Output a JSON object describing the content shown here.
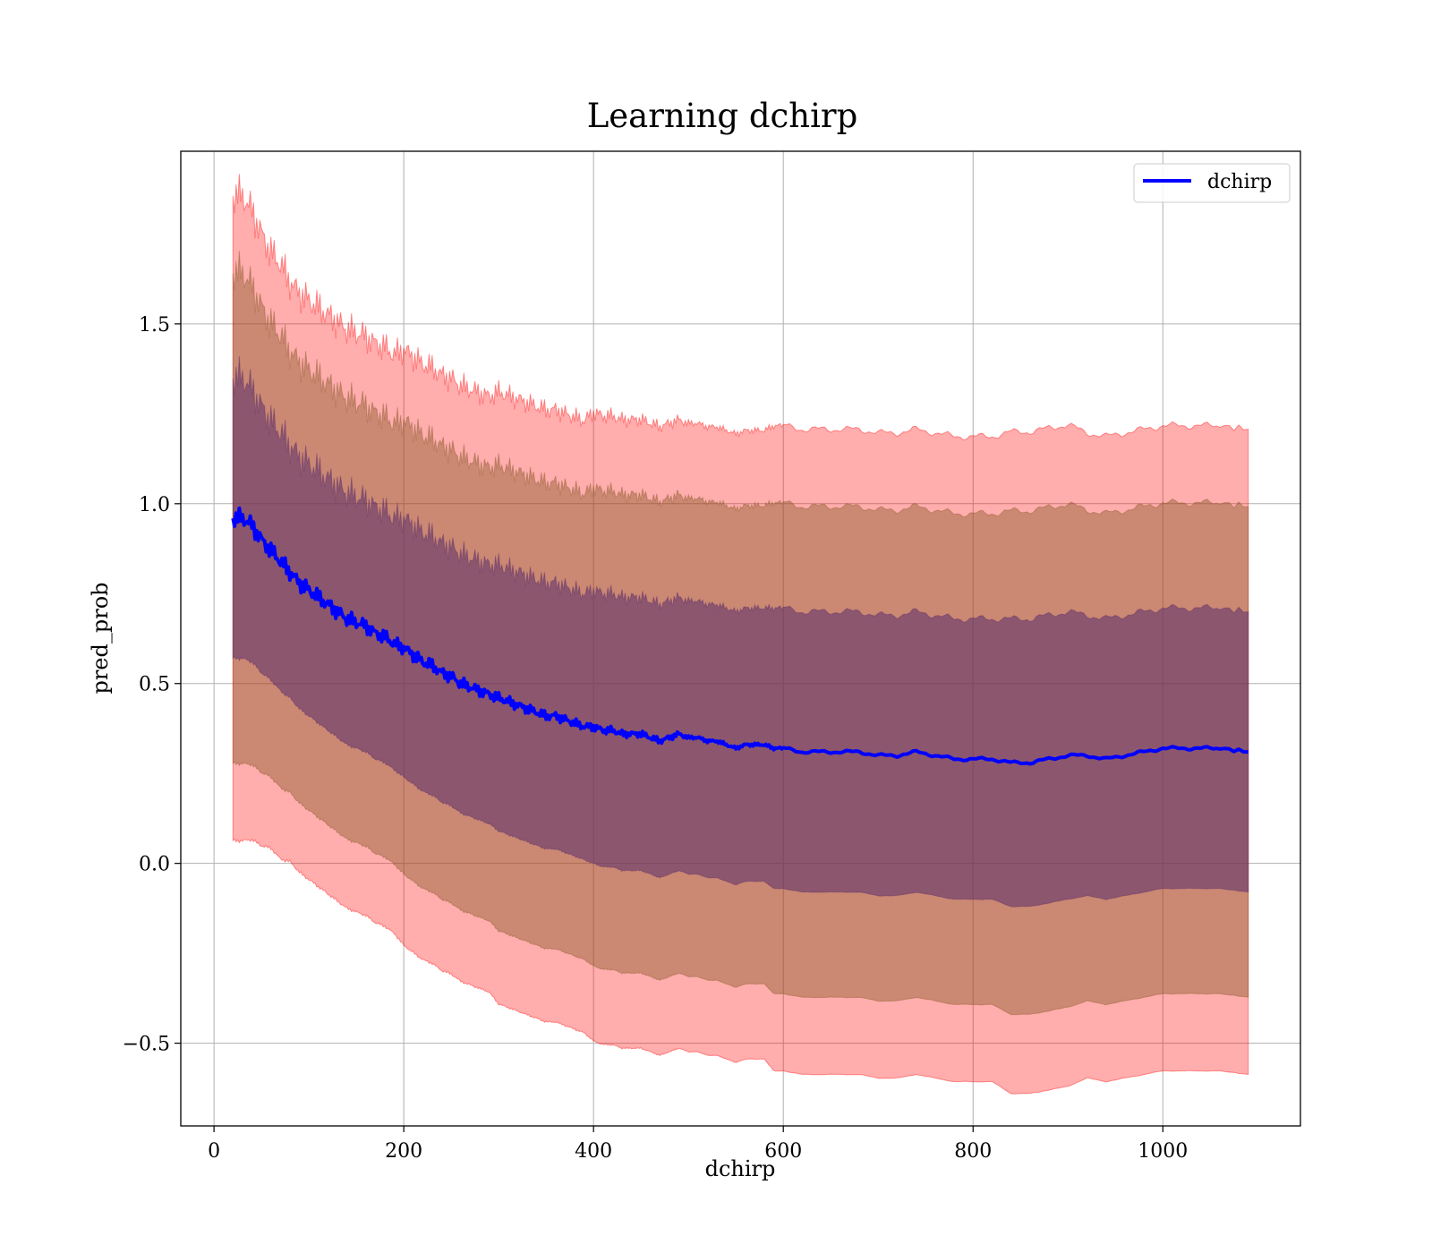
{
  "chart_data": {
    "type": "line",
    "title": "Learning dchirp",
    "xlabel": "dchirp",
    "ylabel": "pred_prob",
    "xlim": [
      -35,
      1145
    ],
    "ylim": [
      -0.73,
      1.98
    ],
    "xticks": [
      0,
      200,
      400,
      600,
      800,
      1000
    ],
    "yticks": [
      -0.5,
      0.0,
      0.5,
      1.0,
      1.5
    ],
    "xtick_labels": [
      "0",
      "200",
      "400",
      "600",
      "800",
      "1000"
    ],
    "ytick_labels": [
      "−0.5",
      "0.0",
      "0.5",
      "1.0",
      "1.5"
    ],
    "grid": true,
    "legend_position": "top-right",
    "legend": [
      "dchirp"
    ],
    "colors": {
      "line": "#0000ff",
      "band_outer": "#ff0000",
      "band_middle": "#8b5a2b",
      "band_inner": "#5a2d6b",
      "grid": "#b0b0b0"
    },
    "series": [
      {
        "name": "dchirp",
        "x": [
          20,
          30,
          40,
          50,
          60,
          70,
          80,
          90,
          100,
          110,
          120,
          130,
          140,
          150,
          160,
          170,
          180,
          190,
          200,
          210,
          220,
          230,
          240,
          250,
          260,
          270,
          280,
          290,
          300,
          310,
          320,
          330,
          340,
          350,
          360,
          370,
          380,
          390,
          400,
          410,
          420,
          430,
          440,
          450,
          460,
          470,
          480,
          490,
          500,
          510,
          520,
          530,
          540,
          550,
          560,
          570,
          580,
          590,
          600,
          620,
          640,
          660,
          680,
          700,
          720,
          740,
          760,
          780,
          800,
          820,
          840,
          860,
          880,
          900,
          920,
          940,
          960,
          980,
          1000,
          1020,
          1040,
          1060,
          1090
        ],
        "y": [
          0.96,
          0.96,
          0.94,
          0.9,
          0.87,
          0.84,
          0.81,
          0.78,
          0.76,
          0.74,
          0.72,
          0.7,
          0.68,
          0.67,
          0.66,
          0.64,
          0.63,
          0.61,
          0.6,
          0.58,
          0.56,
          0.55,
          0.53,
          0.52,
          0.5,
          0.49,
          0.48,
          0.47,
          0.46,
          0.45,
          0.44,
          0.43,
          0.42,
          0.41,
          0.41,
          0.4,
          0.39,
          0.38,
          0.38,
          0.37,
          0.37,
          0.36,
          0.36,
          0.36,
          0.35,
          0.34,
          0.35,
          0.36,
          0.35,
          0.35,
          0.34,
          0.34,
          0.33,
          0.32,
          0.33,
          0.33,
          0.33,
          0.32,
          0.32,
          0.31,
          0.31,
          0.31,
          0.31,
          0.3,
          0.3,
          0.31,
          0.3,
          0.29,
          0.29,
          0.29,
          0.28,
          0.28,
          0.29,
          0.3,
          0.3,
          0.29,
          0.3,
          0.31,
          0.32,
          0.32,
          0.32,
          0.32,
          0.31
        ],
        "std": [
          0.39,
          0.39,
          0.38,
          0.37,
          0.36,
          0.36,
          0.35,
          0.35,
          0.35,
          0.35,
          0.35,
          0.35,
          0.35,
          0.35,
          0.35,
          0.35,
          0.35,
          0.35,
          0.36,
          0.36,
          0.36,
          0.36,
          0.36,
          0.36,
          0.36,
          0.36,
          0.36,
          0.36,
          0.37,
          0.37,
          0.37,
          0.37,
          0.37,
          0.37,
          0.37,
          0.37,
          0.37,
          0.37,
          0.38,
          0.38,
          0.38,
          0.38,
          0.38,
          0.38,
          0.38,
          0.38,
          0.38,
          0.38,
          0.38,
          0.38,
          0.38,
          0.38,
          0.38,
          0.38,
          0.38,
          0.38,
          0.38,
          0.39,
          0.39,
          0.39,
          0.39,
          0.39,
          0.39,
          0.39,
          0.39,
          0.39,
          0.39,
          0.39,
          0.39,
          0.39,
          0.4,
          0.4,
          0.4,
          0.4,
          0.39,
          0.39,
          0.39,
          0.39,
          0.39,
          0.39,
          0.39,
          0.39,
          0.39
        ],
        "bands": [
          "± 1 std",
          "± 1.75 std",
          "± 2.3 std"
        ]
      }
    ]
  }
}
